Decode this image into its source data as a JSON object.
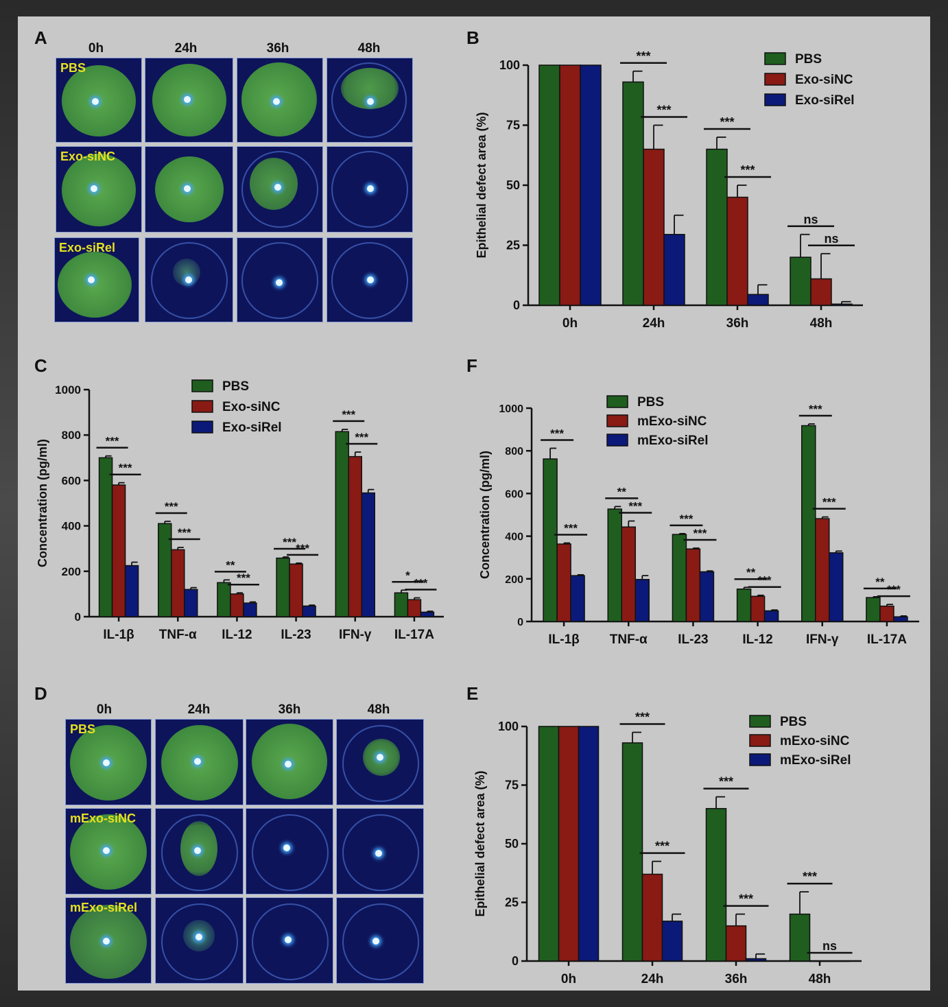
{
  "colors": {
    "pbs": "#1f5e1f",
    "siNC": "#8a1a14",
    "siRel": "#0b1a78",
    "pbs2": "#2e6b45",
    "axis": "#111111",
    "sig": "#111111"
  },
  "panels": {
    "A": "A",
    "B": "B",
    "C": "C",
    "D": "D",
    "E": "E",
    "F": "F"
  },
  "photo_grid_A": {
    "columns": [
      "0h",
      "24h",
      "36h",
      "48h"
    ],
    "rows": [
      "PBS",
      "Exo-siNC",
      "Exo-siRel"
    ]
  },
  "photo_grid_D": {
    "columns": [
      "0h",
      "24h",
      "36h",
      "48h"
    ],
    "rows": [
      "PBS",
      "mExo-siNC",
      "mExo-siRel"
    ]
  },
  "chart_data": [
    {
      "id": "B",
      "type": "bar",
      "categories": [
        "0h",
        "24h",
        "36h",
        "48h"
      ],
      "ylabel": "Epithelial defect area (%)",
      "ylim": [
        0,
        100
      ],
      "yticks": [
        0,
        25,
        50,
        75,
        100
      ],
      "series": [
        {
          "name": "PBS",
          "values": [
            100,
            93,
            65,
            20
          ],
          "errors": [
            0,
            4.5,
            5,
            9.5
          ]
        },
        {
          "name": "Exo-siNC",
          "values": [
            100,
            65,
            45,
            11
          ],
          "errors": [
            0,
            10,
            5,
            10.5
          ]
        },
        {
          "name": "Exo-siRel",
          "values": [
            100,
            29.5,
            4.5,
            0.5
          ],
          "errors": [
            0,
            8,
            4,
            1
          ]
        }
      ],
      "sig": [
        {
          "cat": 1,
          "a": 0,
          "b": 1,
          "text": "***"
        },
        {
          "cat": 1,
          "a": 1,
          "b": 2,
          "text": "***"
        },
        {
          "cat": 2,
          "a": 0,
          "b": 1,
          "text": "***"
        },
        {
          "cat": 2,
          "a": 1,
          "b": 2,
          "text": "***"
        },
        {
          "cat": 3,
          "a": 0,
          "b": 1,
          "text": "ns"
        },
        {
          "cat": 3,
          "a": 1,
          "b": 2,
          "text": "ns"
        }
      ]
    },
    {
      "id": "C",
      "type": "bar",
      "categories": [
        "IL-1β",
        "TNF-α",
        "IL-12",
        "IL-23",
        "IFN-γ",
        "IL-17A"
      ],
      "ylabel": "Concentration (pg/ml)",
      "ylim": [
        0,
        1000
      ],
      "yticks": [
        0,
        200,
        400,
        600,
        800,
        1000
      ],
      "series": [
        {
          "name": "PBS",
          "values": [
            700,
            410,
            150,
            258,
            815,
            105
          ],
          "errors": [
            8,
            10,
            12,
            5,
            10,
            12
          ]
        },
        {
          "name": "Exo-siNC",
          "values": [
            580,
            295,
            100,
            232,
            705,
            75
          ],
          "errors": [
            10,
            10,
            5,
            4,
            20,
            8
          ]
        },
        {
          "name": "Exo-siRel",
          "values": [
            225,
            120,
            60,
            47,
            545,
            20
          ],
          "errors": [
            15,
            8,
            5,
            4,
            15,
            4
          ]
        }
      ],
      "sig": [
        {
          "cat": 0,
          "a": 0,
          "b": 1,
          "text": "***"
        },
        {
          "cat": 0,
          "a": 1,
          "b": 2,
          "text": "***"
        },
        {
          "cat": 1,
          "a": 0,
          "b": 1,
          "text": "***"
        },
        {
          "cat": 1,
          "a": 1,
          "b": 2,
          "text": "***"
        },
        {
          "cat": 2,
          "a": 0,
          "b": 1,
          "text": "**"
        },
        {
          "cat": 2,
          "a": 1,
          "b": 2,
          "text": "***"
        },
        {
          "cat": 3,
          "a": 0,
          "b": 1,
          "text": "***"
        },
        {
          "cat": 3,
          "a": 1,
          "b": 2,
          "text": "***"
        },
        {
          "cat": 4,
          "a": 0,
          "b": 1,
          "text": "***"
        },
        {
          "cat": 4,
          "a": 1,
          "b": 2,
          "text": "***"
        },
        {
          "cat": 5,
          "a": 0,
          "b": 1,
          "text": "*"
        },
        {
          "cat": 5,
          "a": 1,
          "b": 2,
          "text": "***"
        }
      ]
    },
    {
      "id": "F",
      "type": "bar",
      "categories": [
        "IL-1β",
        "TNF-α",
        "IL-23",
        "IL-12",
        "IFN-γ",
        "IL-17A"
      ],
      "ylabel": "Concentration (pg/ml)",
      "ylim": [
        0,
        1000
      ],
      "yticks": [
        0,
        200,
        400,
        600,
        800,
        1000
      ],
      "series": [
        {
          "name": "PBS",
          "values": [
            762,
            527,
            408,
            152,
            918,
            112
          ],
          "errors": [
            50,
            12,
            4,
            8,
            8,
            4
          ]
        },
        {
          "name": "mExo-siNC",
          "values": [
            363,
            443,
            340,
            118,
            482,
            72
          ],
          "errors": [
            5,
            28,
            4,
            5,
            8,
            8
          ]
        },
        {
          "name": "mExo-siRel",
          "values": [
            215,
            197,
            233,
            50,
            322,
            22
          ],
          "errors": [
            4,
            18,
            4,
            4,
            8,
            4
          ]
        }
      ],
      "sig": [
        {
          "cat": 0,
          "a": 0,
          "b": 1,
          "text": "***"
        },
        {
          "cat": 0,
          "a": 1,
          "b": 2,
          "text": "***"
        },
        {
          "cat": 1,
          "a": 0,
          "b": 1,
          "text": "**"
        },
        {
          "cat": 1,
          "a": 1,
          "b": 2,
          "text": "***"
        },
        {
          "cat": 2,
          "a": 0,
          "b": 1,
          "text": "***"
        },
        {
          "cat": 2,
          "a": 1,
          "b": 2,
          "text": "***"
        },
        {
          "cat": 3,
          "a": 0,
          "b": 1,
          "text": "**"
        },
        {
          "cat": 3,
          "a": 1,
          "b": 2,
          "text": "***"
        },
        {
          "cat": 4,
          "a": 0,
          "b": 1,
          "text": "***"
        },
        {
          "cat": 4,
          "a": 1,
          "b": 2,
          "text": "***"
        },
        {
          "cat": 5,
          "a": 0,
          "b": 1,
          "text": "**"
        },
        {
          "cat": 5,
          "a": 1,
          "b": 2,
          "text": "***"
        }
      ]
    },
    {
      "id": "E",
      "type": "bar",
      "categories": [
        "0h",
        "24h",
        "36h",
        "48h"
      ],
      "ylabel": "Epithelial defect area (%)",
      "ylim": [
        0,
        100
      ],
      "yticks": [
        0,
        25,
        50,
        75,
        100
      ],
      "series": [
        {
          "name": "PBS",
          "values": [
            100,
            93,
            65,
            20
          ],
          "errors": [
            0,
            4.5,
            5,
            9.5
          ]
        },
        {
          "name": "mExo-siNC",
          "values": [
            100,
            37,
            15,
            0
          ],
          "errors": [
            0,
            5.5,
            5,
            0
          ]
        },
        {
          "name": "mExo-siRel",
          "values": [
            100,
            17,
            1,
            0
          ],
          "errors": [
            0,
            3,
            2,
            0
          ]
        }
      ],
      "sig": [
        {
          "cat": 1,
          "a": 0,
          "b": 1,
          "text": "***"
        },
        {
          "cat": 1,
          "a": 1,
          "b": 2,
          "text": "***"
        },
        {
          "cat": 2,
          "a": 0,
          "b": 1,
          "text": "***"
        },
        {
          "cat": 2,
          "a": 1,
          "b": 2,
          "text": "***"
        },
        {
          "cat": 3,
          "a": 0,
          "b": 1,
          "text": "***"
        },
        {
          "cat": 3,
          "a": 1,
          "b": 2,
          "text": "ns"
        }
      ]
    }
  ]
}
